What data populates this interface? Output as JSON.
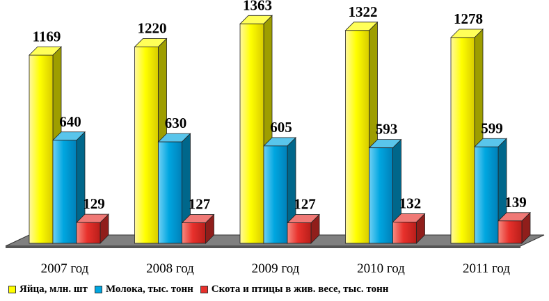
{
  "chart_data": {
    "type": "bar",
    "categories": [
      "2007 год",
      "2008 год",
      "2009 год",
      "2010 год",
      "2011 год"
    ],
    "series": [
      {
        "name": "Яйца, млн. шт",
        "values": [
          1169,
          1220,
          1363,
          1322,
          1278
        ],
        "color": "#ffff00"
      },
      {
        "name": "Молока, тыс. тонн",
        "values": [
          640,
          630,
          605,
          593,
          599
        ],
        "color": "#00a6e0"
      },
      {
        "name": "Скота и птицы в жив. весе, тыс. тонн",
        "values": [
          129,
          127,
          127,
          132,
          139
        ],
        "color": "#e8312c"
      }
    ],
    "ylim": [
      0,
      1400
    ],
    "grid": false,
    "legend": "bottom",
    "style": "3d-clustered-bar",
    "floor_color": "#808080"
  }
}
